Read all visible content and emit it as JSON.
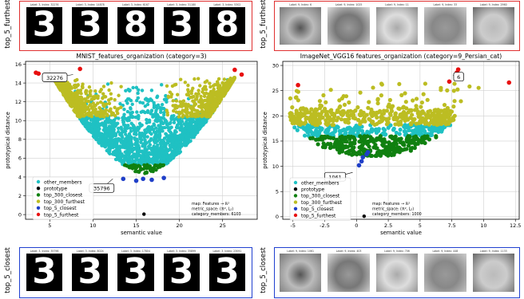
{
  "colors": {
    "other_members": "#1fc1c3",
    "prototype": "#000000",
    "top_300_closest": "#108010",
    "top_300_furthest": "#bcbd22",
    "top_5_closest": "#1f3fc8",
    "top_5_furthest": "#e81010",
    "furthest_border": "#e03030",
    "closest_border": "#2040d0"
  },
  "strips": {
    "top_left": {
      "row_label": "top_5_furthest",
      "thumbs": [
        {
          "label": "Label: 3, Index: 32276",
          "digit": "3"
        },
        {
          "label": "Label: 3, Index: 14878",
          "digit": "3"
        },
        {
          "label": "Label: 3, Index: 6167",
          "digit": "8"
        },
        {
          "label": "Label: 3, Index: 31180",
          "digit": "3"
        },
        {
          "label": "Label: 3, Index: 5302",
          "digit": "8"
        }
      ]
    },
    "top_right": {
      "row_label": "top_5_furthest",
      "thumbs": [
        {
          "label": "Label: 9, Index: 6"
        },
        {
          "label": "Label: 9, Index: 1025"
        },
        {
          "label": "Label: 9, Index: 11"
        },
        {
          "label": "Label: 9, Index: 33"
        },
        {
          "label": "Label: 9, Index: 2960"
        }
      ]
    },
    "bottom_left": {
      "row_label": "top_5_closest",
      "thumbs": [
        {
          "label": "Label: 3, Index: 35796",
          "digit": "3"
        },
        {
          "label": "Label: 3, Index: 8024",
          "digit": "3"
        },
        {
          "label": "Label: 3, Index: 17804",
          "digit": "3"
        },
        {
          "label": "Label: 3, Index: 35899",
          "digit": "3"
        },
        {
          "label": "Label: 3, Index: 23091",
          "digit": "3"
        }
      ]
    },
    "bottom_right": {
      "row_label": "top_5_closest",
      "thumbs": [
        {
          "label": "Label: 9, Index: 1061"
        },
        {
          "label": "Label: 9, Index: 403"
        },
        {
          "label": "Label: 9, Index: 706"
        },
        {
          "label": "Label: 9, Index: 448"
        },
        {
          "label": "Label: 9, Index: 1133"
        }
      ]
    }
  },
  "chart_data": [
    {
      "type": "scatter",
      "title": "MNIST_features_organization (category=3)",
      "xlabel": "semantic value",
      "ylabel": "prototypical distance",
      "xlim": [
        2.2,
        29.0
      ],
      "ylim": [
        -0.5,
        16.3
      ],
      "xticks": [
        5,
        10,
        15,
        20,
        25
      ],
      "yticks": [
        0,
        2,
        4,
        6,
        8,
        10,
        12,
        14,
        16
      ],
      "grid": true,
      "legend_position": "lower-left",
      "legend": [
        "other_members",
        "prototype",
        "top_300_closest",
        "top_300_furthest",
        "top_5_closest",
        "top_5_furthest"
      ],
      "info_text": [
        "map: Features → ℝ²",
        "metric_space: (ℝ², L₂)",
        "category_members: 6103"
      ],
      "annotations": [
        {
          "text": "32276",
          "x": 7.7,
          "y": 14.9
        },
        {
          "text": "35796",
          "x": 12.3,
          "y": 3.8
        }
      ],
      "prototype": {
        "x": 15.9,
        "y": 0.05
      },
      "top_5_furthest": [
        {
          "x": 3.7,
          "y": 15.0
        },
        {
          "x": 3.4,
          "y": 15.1
        },
        {
          "x": 8.5,
          "y": 15.5
        },
        {
          "x": 27.2,
          "y": 14.9
        },
        {
          "x": 26.4,
          "y": 15.4
        }
      ],
      "top_5_closest": [
        {
          "x": 13.5,
          "y": 3.8
        },
        {
          "x": 15.0,
          "y": 3.6
        },
        {
          "x": 15.8,
          "y": 3.8
        },
        {
          "x": 16.8,
          "y": 3.7
        },
        {
          "x": 18.2,
          "y": 3.9
        }
      ],
      "members_region": {
        "count": 6103,
        "description": "V-shaped cloud centered near x=16",
        "closest_band_y": [
          3.7,
          5.2
        ],
        "furthest_band_y": [
          10.3,
          14.8
        ]
      }
    },
    {
      "type": "scatter",
      "title": "ImageNet_VGG16 features_organization (category=9_Persian_cat)",
      "xlabel": "semantic value",
      "ylabel": "prototypical distance",
      "xlim": [
        -5.8,
        12.8
      ],
      "ylim": [
        -0.5,
        30.8
      ],
      "xticks": [
        -5.0,
        -2.5,
        0.0,
        2.5,
        5.0,
        7.5,
        10.0,
        12.5
      ],
      "yticks": [
        0,
        5,
        10,
        15,
        20,
        25,
        30
      ],
      "grid": true,
      "legend_position": "lower-left",
      "legend": [
        "other_members",
        "prototype",
        "top_300_closest",
        "top_300_furthest",
        "top_5_closest",
        "top_5_furthest"
      ],
      "info_text": [
        "map: Features → ℝ²",
        "metric_space: (ℝ², L₂)",
        "category_members: 1000"
      ],
      "annotations": [
        {
          "text": "6",
          "x": 7.6,
          "y": 28.0
        },
        {
          "text": "1061",
          "x": -0.3,
          "y": 8.8
        }
      ],
      "prototype": {
        "x": 0.6,
        "y": 0.1
      },
      "top_5_furthest": [
        {
          "x": -4.6,
          "y": 26.1
        },
        {
          "x": 8.0,
          "y": 29.2
        },
        {
          "x": 7.9,
          "y": 28.6
        },
        {
          "x": 7.3,
          "y": 26.8
        },
        {
          "x": 12.0,
          "y": 26.6
        }
      ],
      "top_5_closest": [
        {
          "x": 0.2,
          "y": 10.2
        },
        {
          "x": 0.4,
          "y": 11.0
        },
        {
          "x": 0.5,
          "y": 11.8
        },
        {
          "x": 0.8,
          "y": 12.4
        },
        {
          "x": 0.9,
          "y": 12.8
        }
      ],
      "members_region": {
        "count": 1000,
        "closest_band_y": [
          12.8,
          16.5
        ],
        "furthest_band_y": [
          18.5,
          27.5
        ]
      }
    }
  ]
}
